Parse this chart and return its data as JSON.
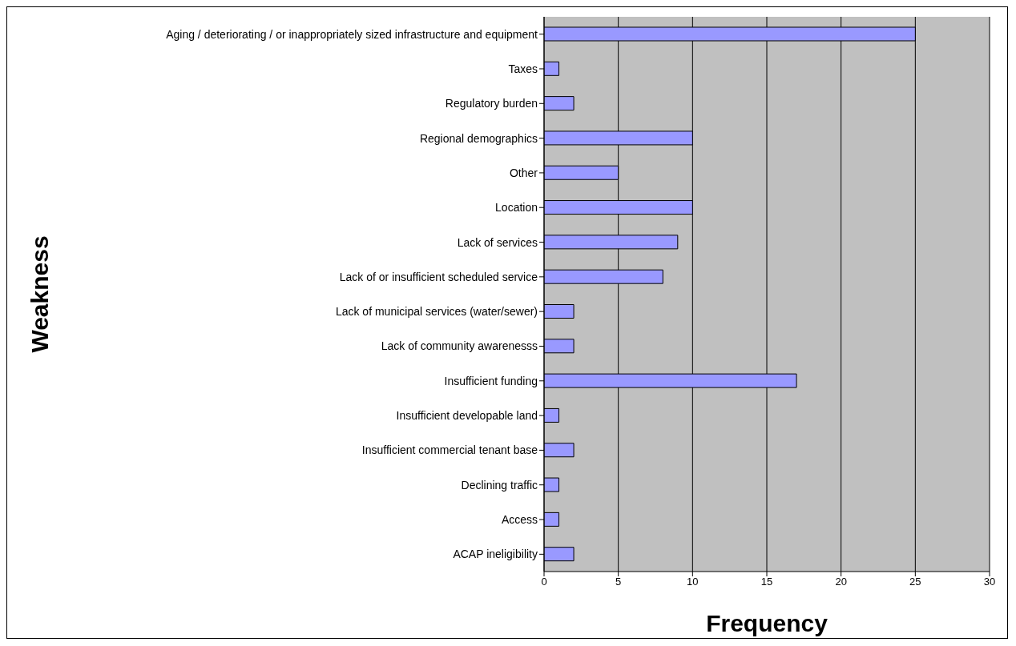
{
  "chart_data": {
    "type": "bar",
    "orientation": "horizontal",
    "xlabel": "Frequency",
    "ylabel": "Weakness",
    "categories": [
      "Aging / deteriorating / or inappropriately sized infrastructure and equipment",
      "Taxes",
      "Regulatory burden",
      "Regional demographics",
      "Other",
      "Location",
      "Lack of services",
      "Lack of or insufficient scheduled service",
      "Lack of municipal services (water/sewer)",
      "Lack of community awarenesss",
      "Insufficient funding",
      "Insufficient developable land",
      "Insufficient commercial tenant base",
      "Declining traffic",
      "Access",
      "ACAP ineligibility"
    ],
    "values": [
      25,
      1,
      2,
      10,
      5,
      10,
      9,
      8,
      2,
      2,
      17,
      1,
      2,
      1,
      1,
      2
    ],
    "color": "#9999ff",
    "xlim": [
      0,
      30
    ],
    "xticks": [
      0,
      5,
      10,
      15,
      20,
      25,
      30
    ],
    "grid": "x",
    "legend": false
  }
}
